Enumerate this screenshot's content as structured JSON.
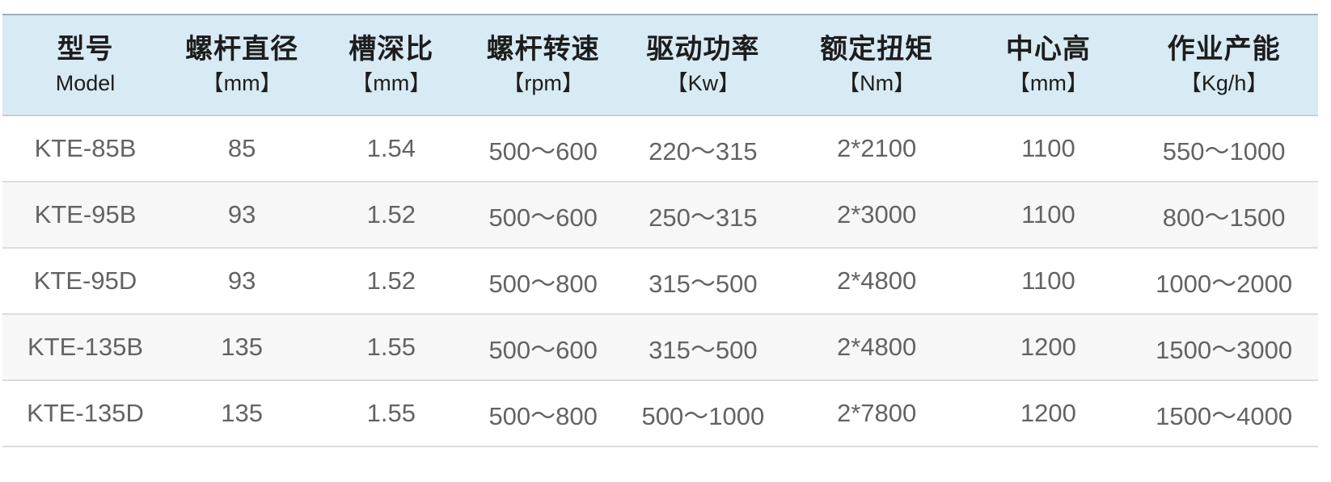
{
  "colors": {
    "header_bg": "#d8eaf4",
    "header_text": "#1d1d1d",
    "body_text": "#636363",
    "row_alt_bg": "#f7f7f7",
    "top_border": "#9fb0bb",
    "header_border": "#c9ced2",
    "row_border": "#dcdcdc"
  },
  "table": {
    "columns": [
      {
        "id": "model",
        "title": "型号",
        "unit": "Model"
      },
      {
        "id": "screw-diameter",
        "title": "螺杆直径",
        "unit": "【mm】"
      },
      {
        "id": "groove-depth-ratio",
        "title": "槽深比",
        "unit": "【mm】"
      },
      {
        "id": "screw-speed",
        "title": "螺杆转速",
        "unit": "【rpm】"
      },
      {
        "id": "drive-power",
        "title": "驱动功率",
        "unit": "【Kw】"
      },
      {
        "id": "rated-torque",
        "title": "额定扭矩",
        "unit": "【Nm】"
      },
      {
        "id": "center-height",
        "title": "中心高",
        "unit": "【mm】"
      },
      {
        "id": "output-capacity",
        "title": "作业产能",
        "unit": "【Kg/h】"
      }
    ],
    "rows": [
      [
        "KTE-85B",
        "85",
        "1.54",
        "500～600",
        "220～315",
        "2*2100",
        "1100",
        "550～1000"
      ],
      [
        "KTE-95B",
        "93",
        "1.52",
        "500～600",
        "250～315",
        "2*3000",
        "1100",
        "800～1500"
      ],
      [
        "KTE-95D",
        "93",
        "1.52",
        "500～800",
        "315～500",
        "2*4800",
        "1100",
        "1000～2000"
      ],
      [
        "KTE-135B",
        "135",
        "1.55",
        "500～600",
        "315～500",
        "2*4800",
        "1200",
        "1500～3000"
      ],
      [
        "KTE-135D",
        "135",
        "1.55",
        "500～800",
        "500～1000",
        "2*7800",
        "1200",
        "1500～4000"
      ]
    ]
  },
  "chart_data": {
    "type": "table",
    "title": "",
    "columns": [
      "型号 Model",
      "螺杆直径【mm】",
      "槽深比【mm】",
      "螺杆转速【rpm】",
      "驱动功率【Kw】",
      "额定扭矩【Nm】",
      "中心高【mm】",
      "作业产能【Kg/h】"
    ],
    "rows": [
      [
        "KTE-85B",
        "85",
        "1.54",
        "500～600",
        "220～315",
        "2*2100",
        "1100",
        "550～1000"
      ],
      [
        "KTE-95B",
        "93",
        "1.52",
        "500～600",
        "250～315",
        "2*3000",
        "1100",
        "800～1500"
      ],
      [
        "KTE-95D",
        "93",
        "1.52",
        "500～800",
        "315～500",
        "2*4800",
        "1100",
        "1000～2000"
      ],
      [
        "KTE-135B",
        "135",
        "1.55",
        "500～600",
        "315～500",
        "2*4800",
        "1200",
        "1500～3000"
      ],
      [
        "KTE-135D",
        "135",
        "1.55",
        "500～800",
        "500～1000",
        "2*7800",
        "1200",
        "1500～4000"
      ]
    ]
  }
}
